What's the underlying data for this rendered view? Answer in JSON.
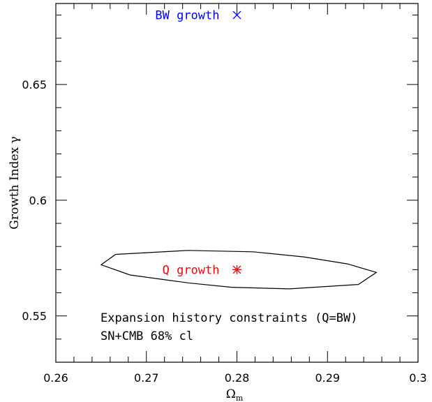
{
  "chart_data": {
    "type": "scatter",
    "xlabel": "Ω",
    "xlabel_sub": "m",
    "ylabel": "Growth Index γ",
    "xlim": [
      0.26,
      0.3
    ],
    "ylim": [
      0.53,
      0.685
    ],
    "x_ticks": [
      0.26,
      0.27,
      0.28,
      0.29,
      0.3
    ],
    "x_tick_labels": [
      "0.26",
      "0.27",
      "0.28",
      "0.29",
      "0.3"
    ],
    "y_ticks": [
      0.55,
      0.6,
      0.65
    ],
    "y_tick_labels": [
      "0.55",
      "0.6",
      "0.65"
    ],
    "x_minor_step": 0.002,
    "y_minor_step": 0.01,
    "grid": false,
    "series": [
      {
        "name": "BW growth",
        "marker": "cross",
        "color": "#0000ff",
        "x": 0.28,
        "y": 0.68
      },
      {
        "name": "Q growth",
        "marker": "asterisk",
        "color": "#ff0000",
        "x": 0.28,
        "y": 0.57
      }
    ],
    "contour": {
      "color": "#000000",
      "points": [
        [
          0.265,
          0.5721
        ],
        [
          0.2666,
          0.5766
        ],
        [
          0.2746,
          0.5783
        ],
        [
          0.2818,
          0.5777
        ],
        [
          0.2874,
          0.5755
        ],
        [
          0.2922,
          0.5725
        ],
        [
          0.2954,
          0.5688
        ],
        [
          0.2934,
          0.5636
        ],
        [
          0.2858,
          0.5617
        ],
        [
          0.2794,
          0.5624
        ],
        [
          0.2746,
          0.5643
        ],
        [
          0.2682,
          0.5677
        ]
      ]
    },
    "annotations": [
      "Expansion history constraints (Q=BW)",
      "SN+CMB 68% cl"
    ]
  }
}
